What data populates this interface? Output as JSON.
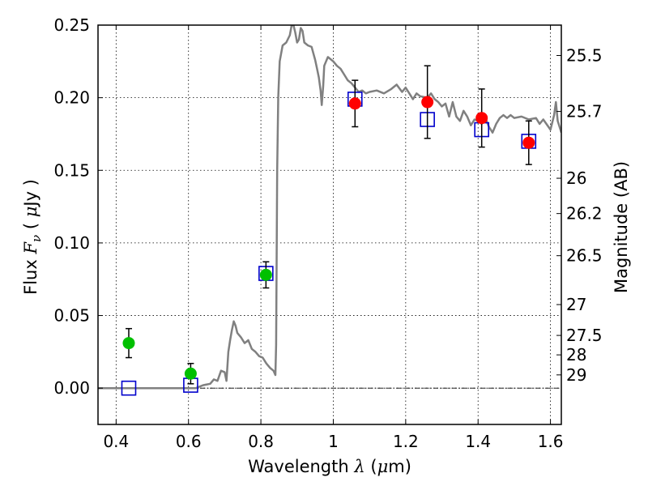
{
  "chart_data": {
    "type": "scatter",
    "xlabel": {
      "prefix": "Wavelength",
      "symbol": "λ",
      "unit_open": "(",
      "unit_mu": "μ",
      "unit_rest": "m)"
    },
    "ylabel": {
      "prefix": "Flux",
      "symbol": "F",
      "subscript": "ν",
      "unit_open": "(",
      "unit_mu": "μ",
      "unit_rest": "Jy )"
    },
    "y2label": "Magnitude (AB)",
    "xlim": [
      0.35,
      1.63
    ],
    "ylim": [
      -0.025,
      0.25
    ],
    "x_ticks": [
      0.4,
      0.6,
      0.8,
      1.0,
      1.2,
      1.4,
      1.6
    ],
    "x_tick_labels": [
      "0.4",
      "0.6",
      "0.8",
      "1",
      "1.2",
      "1.4",
      "1.6"
    ],
    "y_ticks": [
      0.0,
      0.05,
      0.1,
      0.15,
      0.2,
      0.25
    ],
    "y_tick_labels": [
      "0.00",
      "0.05",
      "0.10",
      "0.15",
      "0.20",
      "0.25"
    ],
    "mag_ticks": [
      25.5,
      25.7,
      26,
      26.2,
      26.5,
      27,
      27.5,
      28,
      29
    ],
    "mag_tick_labels": [
      "25.5",
      "25.7",
      "26",
      "26.2",
      "26.5",
      "27",
      "27.5",
      "28",
      "29"
    ],
    "grid": true,
    "zero_line": true,
    "colors": {
      "model": "#808080",
      "model_points": "#0000cc",
      "optical_points": "#00c000",
      "nir_points": "#ff0000",
      "errorbar": "#000000"
    },
    "series": [
      {
        "marker": "circle-green",
        "points": [
          {
            "x": 0.435,
            "y": 0.031,
            "err": 0.01
          },
          {
            "x": 0.606,
            "y": 0.01,
            "err": 0.007
          },
          {
            "x": 0.814,
            "y": 0.078,
            "err": 0.009
          }
        ]
      },
      {
        "marker": "circle-red",
        "points": [
          {
            "x": 1.06,
            "y": 0.196,
            "err": 0.016
          },
          {
            "x": 1.26,
            "y": 0.197,
            "err": 0.025
          },
          {
            "x": 1.41,
            "y": 0.186,
            "err": 0.02
          },
          {
            "x": 1.54,
            "y": 0.169,
            "err": 0.015
          }
        ]
      },
      {
        "marker": "square-blue",
        "points": [
          {
            "x": 0.435,
            "y": 0.0
          },
          {
            "x": 0.606,
            "y": 0.002
          },
          {
            "x": 0.814,
            "y": 0.079
          },
          {
            "x": 1.06,
            "y": 0.199
          },
          {
            "x": 1.26,
            "y": 0.185
          },
          {
            "x": 1.41,
            "y": 0.178
          },
          {
            "x": 1.54,
            "y": 0.17
          }
        ]
      },
      {
        "marker": "line-gray",
        "points": [
          [
            0.35,
            0.0
          ],
          [
            0.6,
            0.0
          ],
          [
            0.62,
            0.0
          ],
          [
            0.64,
            0.002
          ],
          [
            0.66,
            0.003
          ],
          [
            0.67,
            0.006
          ],
          [
            0.68,
            0.005
          ],
          [
            0.69,
            0.012
          ],
          [
            0.7,
            0.011
          ],
          [
            0.705,
            0.005
          ],
          [
            0.71,
            0.025
          ],
          [
            0.715,
            0.033
          ],
          [
            0.72,
            0.04
          ],
          [
            0.725,
            0.046
          ],
          [
            0.73,
            0.043
          ],
          [
            0.735,
            0.038
          ],
          [
            0.745,
            0.035
          ],
          [
            0.755,
            0.031
          ],
          [
            0.765,
            0.033
          ],
          [
            0.775,
            0.027
          ],
          [
            0.785,
            0.025
          ],
          [
            0.795,
            0.022
          ],
          [
            0.805,
            0.021
          ],
          [
            0.815,
            0.017
          ],
          [
            0.825,
            0.014
          ],
          [
            0.835,
            0.012
          ],
          [
            0.84,
            0.009
          ],
          [
            0.842,
            0.03
          ],
          [
            0.845,
            0.15
          ],
          [
            0.848,
            0.2
          ],
          [
            0.852,
            0.225
          ],
          [
            0.86,
            0.236
          ],
          [
            0.87,
            0.238
          ],
          [
            0.88,
            0.243
          ],
          [
            0.885,
            0.25
          ],
          [
            0.89,
            0.25
          ],
          [
            0.895,
            0.245
          ],
          [
            0.9,
            0.238
          ],
          [
            0.905,
            0.24
          ],
          [
            0.91,
            0.248
          ],
          [
            0.915,
            0.246
          ],
          [
            0.92,
            0.238
          ],
          [
            0.93,
            0.236
          ],
          [
            0.94,
            0.235
          ],
          [
            0.95,
            0.226
          ],
          [
            0.955,
            0.22
          ],
          [
            0.96,
            0.214
          ],
          [
            0.965,
            0.205
          ],
          [
            0.968,
            0.195
          ],
          [
            0.972,
            0.208
          ],
          [
            0.975,
            0.222
          ],
          [
            0.985,
            0.228
          ],
          [
            1.0,
            0.225
          ],
          [
            1.01,
            0.222
          ],
          [
            1.02,
            0.22
          ],
          [
            1.03,
            0.216
          ],
          [
            1.04,
            0.212
          ],
          [
            1.05,
            0.21
          ],
          [
            1.06,
            0.207
          ],
          [
            1.07,
            0.204
          ],
          [
            1.08,
            0.205
          ],
          [
            1.09,
            0.203
          ],
          [
            1.1,
            0.204
          ],
          [
            1.12,
            0.205
          ],
          [
            1.14,
            0.203
          ],
          [
            1.16,
            0.206
          ],
          [
            1.175,
            0.209
          ],
          [
            1.19,
            0.204
          ],
          [
            1.2,
            0.207
          ],
          [
            1.21,
            0.203
          ],
          [
            1.22,
            0.199
          ],
          [
            1.23,
            0.203
          ],
          [
            1.24,
            0.201
          ],
          [
            1.26,
            0.2
          ],
          [
            1.27,
            0.203
          ],
          [
            1.28,
            0.199
          ],
          [
            1.29,
            0.197
          ],
          [
            1.3,
            0.194
          ],
          [
            1.31,
            0.196
          ],
          [
            1.32,
            0.187
          ],
          [
            1.33,
            0.197
          ],
          [
            1.34,
            0.187
          ],
          [
            1.35,
            0.184
          ],
          [
            1.36,
            0.191
          ],
          [
            1.37,
            0.187
          ],
          [
            1.38,
            0.181
          ],
          [
            1.39,
            0.185
          ],
          [
            1.4,
            0.184
          ],
          [
            1.41,
            0.182
          ],
          [
            1.42,
            0.186
          ],
          [
            1.43,
            0.18
          ],
          [
            1.44,
            0.176
          ],
          [
            1.45,
            0.182
          ],
          [
            1.46,
            0.186
          ],
          [
            1.47,
            0.188
          ],
          [
            1.48,
            0.186
          ],
          [
            1.49,
            0.188
          ],
          [
            1.5,
            0.186
          ],
          [
            1.52,
            0.187
          ],
          [
            1.54,
            0.185
          ],
          [
            1.56,
            0.186
          ],
          [
            1.57,
            0.182
          ],
          [
            1.58,
            0.185
          ],
          [
            1.6,
            0.178
          ],
          [
            1.61,
            0.188
          ],
          [
            1.615,
            0.197
          ],
          [
            1.62,
            0.184
          ],
          [
            1.625,
            0.18
          ],
          [
            1.63,
            0.176
          ]
        ]
      }
    ]
  }
}
